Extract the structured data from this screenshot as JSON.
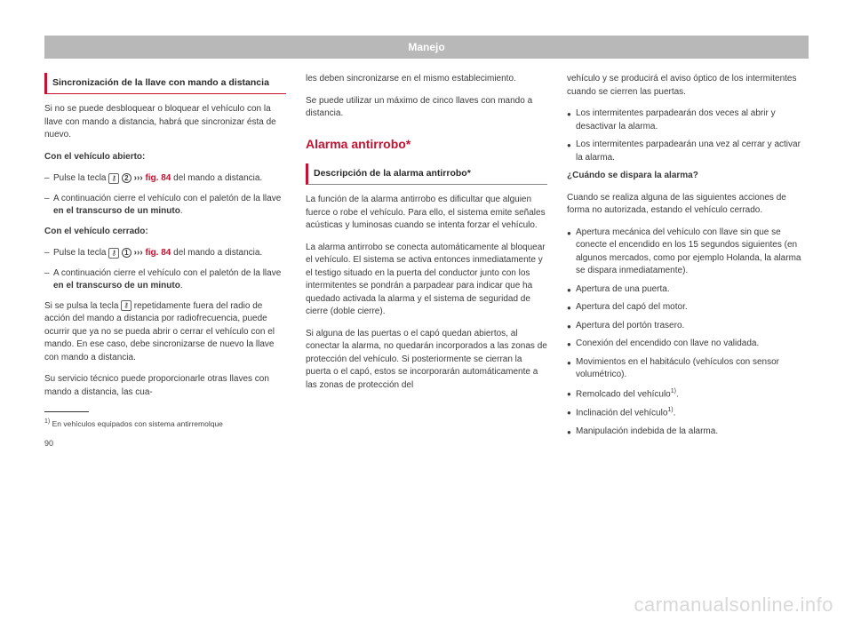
{
  "header": {
    "title": "Manejo"
  },
  "col1": {
    "heading": "Sincronización de la llave con mando a distancia",
    "p1": "Si no se puede desbloquear o bloquear el vehículo con la llave con mando a distancia, habrá que sincronizar ésta de nuevo.",
    "sub1": "Con el vehículo abierto:",
    "l1a_pre": "Pulse la tecla ",
    "l1a_num": "2",
    "l1a_chev": " ››› ",
    "l1a_fig": "fig. 84",
    "l1a_post": " del mando a distancia.",
    "l1b_pre": "A continuación cierre el vehículo con el paletón de la llave ",
    "l1b_bold": "en el transcurso de un minuto",
    "l1b_post": ".",
    "sub2": "Con el vehículo cerrado:",
    "l2a_pre": "Pulse la tecla ",
    "l2a_num": "1",
    "l2a_chev": " ››› ",
    "l2a_fig": "fig. 84",
    "l2a_post": " del mando a distancia.",
    "l2b_pre": "A continuación cierre el vehículo con el paletón de la llave ",
    "l2b_bold": "en el transcurso de un minuto",
    "l2b_post": ".",
    "p2_pre": "Si se pulsa la tecla ",
    "p2_post": " repetidamente fuera del radio de acción del mando a distancia por radiofrecuencia, puede ocurrir que ya no se pueda abrir o cerrar el vehículo con el mando. En ese caso, debe sincronizarse de nuevo la llave con mando a distancia.",
    "p3": "Su servicio técnico puede proporcionarle otras llaves con mando a distancia, las cua-",
    "footnote_num": "1)",
    "footnote": " En vehículos equipados con sistema antirremolque",
    "pagenum": "90"
  },
  "col2": {
    "p1": "les deben sincronizarse en el mismo establecimiento.",
    "p2": "Se puede utilizar un máximo de cinco llaves con mando a distancia.",
    "h2": "Alarma antirrobo*",
    "heading": "Descripción de la alarma antirrobo*",
    "p3": "La función de la alarma antirrobo es dificultar que alguien fuerce o robe el vehículo. Para ello, el sistema emite señales acústicas y luminosas cuando se intenta forzar el vehículo.",
    "p4": "La alarma antirrobo se conecta automáticamente al bloquear el vehículo. El sistema se activa entonces inmediatamente y el testigo situado en la puerta del conductor junto con los intermitentes se pondrán a parpadear para indicar que ha quedado activada la alarma y el sistema de seguridad de cierre (doble cierre).",
    "p5": "Si alguna de las puertas o el capó quedan abiertos, al conectar la alarma, no quedarán incorporados a las zonas de protección del vehículo. Si posteriormente se cierran la puerta o el capó, estos se incorporarán automáticamente a las zonas de protección del"
  },
  "col3": {
    "p1": "vehículo y se producirá el aviso óptico de los intermitentes cuando se cierren las puertas.",
    "b1": "Los intermitentes parpadearán dos veces al abrir y desactivar la alarma.",
    "b2": "Los intermitentes parpadearán una vez al cerrar y activar la alarma.",
    "sub": "¿Cuándo se dispara la alarma?",
    "p2": "Cuando se realiza alguna de las siguientes acciones de forma no autorizada, estando el vehículo cerrado.",
    "bl1": "Apertura mecánica del vehículo con llave sin que se conecte el encendido en los 15 segundos siguientes (en algunos mercados, como por ejemplo Holanda, la alarma se dispara inmediatamente).",
    "bl2": "Apertura de una puerta.",
    "bl3": "Apertura del capó del motor.",
    "bl4": "Apertura del portón trasero.",
    "bl5": "Conexión del encendido con llave no validada.",
    "bl6": "Movimientos en el habitáculo (vehículos con sensor volumétrico).",
    "bl7_pre": "Remolcado del vehículo",
    "bl7_sup": "1)",
    "bl7_post": ".",
    "bl8_pre": "Inclinación del vehículo",
    "bl8_sup": "1)",
    "bl8_post": ".",
    "bl9": "Manipulación indebida de la alarma."
  },
  "watermark": "carmanualsonline.info",
  "icon_key": "⚷",
  "colors": {
    "accent": "#c41230",
    "header_bg": "#b8b8b8",
    "text": "#3a3a3a"
  }
}
